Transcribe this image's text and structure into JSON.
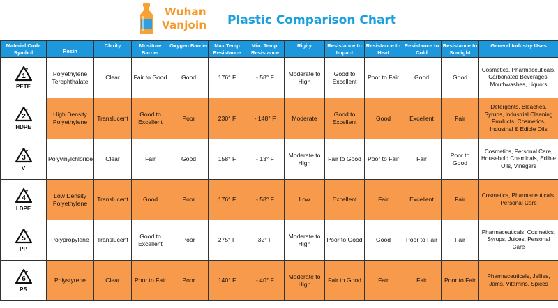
{
  "logo": {
    "line1": "Wuhan",
    "line2": "Vanjoin",
    "bottle_colors": [
      "#f7a233",
      "#2f9fe0"
    ]
  },
  "title": "Plastic Comparison Chart",
  "colors": {
    "header": "#1e98dc",
    "orange_row": "#f79a4b",
    "title": "#1aa0dc",
    "logo": "#f39a2a"
  },
  "columns": [
    "Material Code Symbol",
    "Resin",
    "Clarity",
    "Mositure Barrier",
    "Oxygen Barrier",
    "Max Temp Resistance",
    "Min. Temp. Resistance",
    "Rigity",
    "Resistance to Impact",
    "Resistance to Heat",
    "Resistance to Cold",
    "Resistance to Sunlight",
    "General Industry Uses"
  ],
  "rows": [
    {
      "num": "1",
      "code": "PETE",
      "resin": "Polyethylene Terephthalate",
      "clarity": "Clear",
      "moisture": "Fair to Good",
      "oxygen": "Good",
      "max_temp": "176° F",
      "min_temp": "- 58° F",
      "rigidity": "Moderate to High",
      "impact": "Good to Excellent",
      "heat": "Poor to Fair",
      "cold": "Good",
      "sunlight": "Good",
      "uses": "Cosmetics, Pharmaceuticals, Carbonated Beverages, Mouthwashes, Liquors"
    },
    {
      "num": "2",
      "code": "HDPE",
      "resin": "High Density Polyethylene",
      "clarity": "Translucent",
      "moisture": "Good to Excellent",
      "oxygen": "Poor",
      "max_temp": "230° F",
      "min_temp": "- 148° F",
      "rigidity": "Moderate",
      "impact": "Good to Excellent",
      "heat": "Good",
      "cold": "Excellent",
      "sunlight": "Fair",
      "uses": "Detergents, Bleaches, Syrups, Industrial Cleaning Products, Cosmetics, Industrial & Edible Oils"
    },
    {
      "num": "3",
      "code": "V",
      "resin": "Polyvinylchloride",
      "clarity": "Clear",
      "moisture": "Fair",
      "oxygen": "Good",
      "max_temp": "158° F",
      "min_temp": "- 13° F",
      "rigidity": "Moderate to High",
      "impact": "Fair to Good",
      "heat": "Poor to Fair",
      "cold": "Fair",
      "sunlight": "Poor to Good",
      "uses": "Cosmetics, Personal Care, Household Chemicals, Edible Oils, Vinegars"
    },
    {
      "num": "4",
      "code": "LDPE",
      "resin": "Low Density Polyethylene",
      "clarity": "Translucent",
      "moisture": "Good",
      "oxygen": "Poor",
      "max_temp": "176° F",
      "min_temp": "- 58° F",
      "rigidity": "Low",
      "impact": "Excellent",
      "heat": "Fair",
      "cold": "Excellent",
      "sunlight": "Fair",
      "uses": "Cosmetics, Pharmaceuticals, Personal Care"
    },
    {
      "num": "5",
      "code": "PP",
      "resin": "Polypropylene",
      "clarity": "Translucent",
      "moisture": "Good to Excellent",
      "oxygen": "Poor",
      "max_temp": "275° F",
      "min_temp": "32° F",
      "rigidity": "Moderate to High",
      "impact": "Poor to Good",
      "heat": "Good",
      "cold": "Poor to Fair",
      "sunlight": "Fair",
      "uses": "Pharmaceuticals, Cosmetics, Syrups, Juices, Personal Care"
    },
    {
      "num": "6",
      "code": "PS",
      "resin": "Polystyrene",
      "clarity": "Clear",
      "moisture": "Poor to Fair",
      "oxygen": "Poor",
      "max_temp": "140° F",
      "min_temp": "- 40° F",
      "rigidity": "Moderate to High",
      "impact": "Fair to Good",
      "heat": "Fair",
      "cold": "Fair",
      "sunlight": "Poor to Fair",
      "uses": "Pharmaceuticals, Jellies, Jams, Vitamins, Spices"
    }
  ]
}
